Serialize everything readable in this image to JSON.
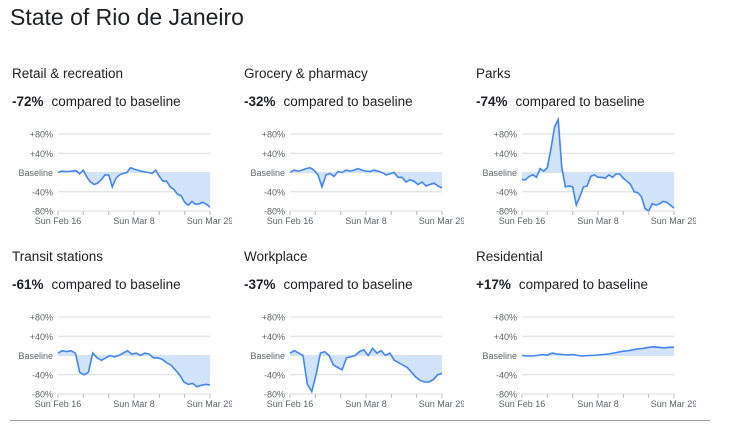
{
  "title": "State of Rio de Janeiro",
  "chart_data": [
    {
      "type": "area",
      "title": "Retail & recreation",
      "change": "-72%",
      "change_label": "compared to baseline",
      "yticks": [
        "+80%",
        "+40%",
        "Baseline",
        "-40%",
        "-80%"
      ],
      "xticks": [
        "Sun Feb 16",
        "Sun Mar 8",
        "Sun Mar 29"
      ],
      "ylim": [
        -80,
        80
      ],
      "values": [
        0,
        3,
        2,
        2,
        3,
        4,
        -3,
        5,
        -10,
        -20,
        -25,
        -22,
        -15,
        -5,
        -5,
        -30,
        -12,
        -5,
        -2,
        0,
        10,
        7,
        5,
        3,
        1,
        0,
        -2,
        5,
        -8,
        -18,
        -18,
        -30,
        -35,
        -45,
        -48,
        -62,
        -68,
        -60,
        -66,
        -65,
        -62,
        -66,
        -72
      ]
    },
    {
      "type": "area",
      "title": "Grocery & pharmacy",
      "change": "-32%",
      "change_label": "compared to baseline",
      "yticks": [
        "+80%",
        "+40%",
        "Baseline",
        "-40%",
        "-80%"
      ],
      "xticks": [
        "Sun Feb 16",
        "Sun Mar 8",
        "Sun Mar 29"
      ],
      "ylim": [
        -80,
        80
      ],
      "values": [
        0,
        5,
        3,
        5,
        8,
        10,
        5,
        -5,
        -30,
        -5,
        -2,
        -8,
        2,
        0,
        5,
        3,
        5,
        8,
        5,
        3,
        2,
        5,
        3,
        0,
        -5,
        -3,
        0,
        -10,
        -10,
        -20,
        -15,
        -18,
        -25,
        -20,
        -28,
        -25,
        -22,
        -28,
        -32
      ]
    },
    {
      "type": "area",
      "title": "Parks",
      "change": "-74%",
      "change_label": "compared to baseline",
      "yticks": [
        "+80%",
        "+40%",
        "Baseline",
        "-40%",
        "-80%"
      ],
      "xticks": [
        "Sun Feb 16",
        "Sun Mar 8",
        "Sun Mar 29"
      ],
      "ylim": [
        -80,
        80
      ],
      "values": [
        -15,
        -15,
        -8,
        -5,
        -10,
        8,
        3,
        10,
        50,
        95,
        110,
        10,
        -30,
        -28,
        -30,
        -68,
        -50,
        -30,
        -28,
        -8,
        -5,
        -10,
        -10,
        -12,
        -5,
        -10,
        -3,
        -3,
        -12,
        -18,
        -25,
        -40,
        -42,
        -50,
        -75,
        -80,
        -65,
        -68,
        -65,
        -60,
        -62,
        -68,
        -74
      ]
    },
    {
      "type": "area",
      "title": "Transit stations",
      "change": "-61%",
      "change_label": "compared to baseline",
      "yticks": [
        "+80%",
        "+40%",
        "Baseline",
        "-40%",
        "-80%"
      ],
      "xticks": [
        "Sun Feb 16",
        "Sun Mar 8",
        "Sun Mar 29"
      ],
      "ylim": [
        -80,
        80
      ],
      "values": [
        5,
        10,
        8,
        10,
        5,
        -35,
        -40,
        -35,
        5,
        -5,
        -10,
        -5,
        0,
        -3,
        0,
        5,
        10,
        3,
        5,
        0,
        5,
        3,
        -5,
        -5,
        -8,
        -15,
        -20,
        -30,
        -40,
        -55,
        -60,
        -58,
        -65,
        -62,
        -60,
        -61
      ]
    },
    {
      "type": "area",
      "title": "Workplace",
      "change": "-37%",
      "change_label": "compared to baseline",
      "yticks": [
        "+80%",
        "+40%",
        "Baseline",
        "-40%",
        "-80%"
      ],
      "xticks": [
        "Sun Feb 16",
        "Sun Mar 8",
        "Sun Mar 29"
      ],
      "ylim": [
        -80,
        80
      ],
      "values": [
        5,
        10,
        5,
        0,
        -60,
        -75,
        -40,
        5,
        8,
        0,
        -20,
        -25,
        -30,
        -5,
        -3,
        0,
        8,
        12,
        0,
        15,
        5,
        10,
        0,
        5,
        -10,
        -15,
        -20,
        -25,
        -35,
        -45,
        -52,
        -55,
        -55,
        -50,
        -40,
        -37
      ]
    },
    {
      "type": "area",
      "title": "Residential",
      "change": "+17%",
      "change_label": "compared to baseline",
      "yticks": [
        "+80%",
        "+40%",
        "Baseline",
        "-40%",
        "-80%"
      ],
      "xticks": [
        "Sun Feb 16",
        "Sun Mar 8",
        "Sun Mar 29"
      ],
      "ylim": [
        -80,
        80
      ],
      "values": [
        0,
        -1,
        -1,
        0,
        2,
        1,
        5,
        3,
        2,
        1,
        2,
        0,
        -1,
        0,
        0,
        1,
        2,
        3,
        5,
        7,
        9,
        10,
        12,
        14,
        15,
        17,
        18,
        17,
        16,
        17,
        17
      ]
    }
  ],
  "colors": {
    "line": "#4285f4",
    "fill": "#d2e3fc",
    "grid": "#dadce0"
  }
}
